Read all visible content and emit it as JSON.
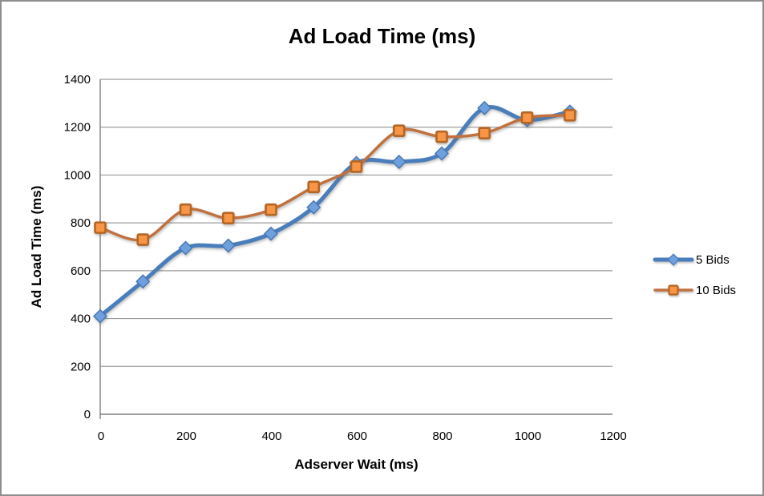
{
  "figure": {
    "background": "#ffffff",
    "border_color": "#8e8e8e"
  },
  "chart_data": {
    "type": "line",
    "title": "Ad Load Time (ms)",
    "xlabel": "Adserver Wait (ms)",
    "ylabel": "Ad Load Time (ms)",
    "x": [
      0,
      100,
      200,
      300,
      400,
      500,
      600,
      700,
      800,
      900,
      1000,
      1100
    ],
    "series": [
      {
        "name": "5 Bids",
        "color": "#4a7ebb",
        "marker": "diamond",
        "marker_fill": "#6fa0dd",
        "marker_stroke": "#4576b2",
        "line_width": 5,
        "values": [
          410,
          555,
          695,
          705,
          755,
          865,
          1050,
          1055,
          1090,
          1280,
          1230,
          1265
        ]
      },
      {
        "name": "10 Bids",
        "color": "#c0713f",
        "marker": "square",
        "marker_fill": "#f79646",
        "marker_stroke": "#b56524",
        "line_width": 3.5,
        "values": [
          780,
          730,
          855,
          820,
          855,
          950,
          1035,
          1185,
          1160,
          1175,
          1240,
          1250
        ]
      }
    ],
    "xlim": [
      0,
      1200
    ],
    "ylim": [
      0,
      1400
    ],
    "xticks": [
      0,
      200,
      400,
      600,
      800,
      1000,
      1200
    ],
    "yticks": [
      0,
      200,
      400,
      600,
      800,
      1000,
      1200,
      1400
    ],
    "grid": "horizontal-only",
    "gridline_color": "#9b9b9b",
    "axis_color": "#7f7f7f",
    "smooth_lines": true,
    "legend_position": "right"
  }
}
